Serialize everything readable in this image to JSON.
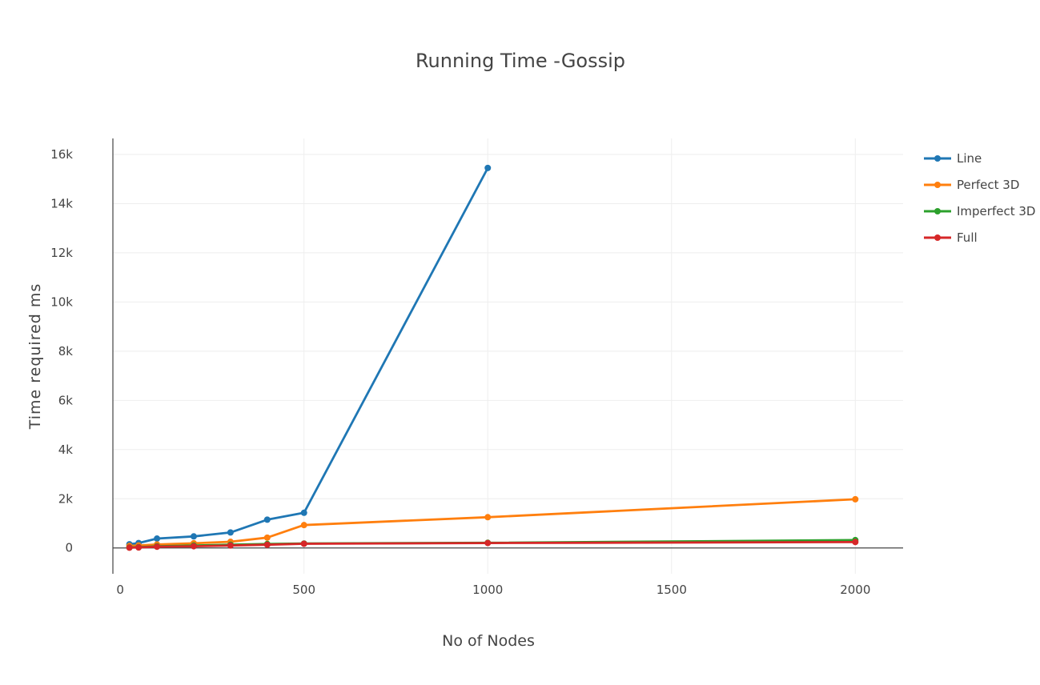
{
  "chart_data": {
    "type": "line",
    "title": "Running Time -Gossip",
    "xlabel": "No of Nodes",
    "ylabel": "Time required ms",
    "xlim": [
      -20,
      2130
    ],
    "ylim": [
      -1050,
      16650
    ],
    "x_ticks": [
      0,
      500,
      1000,
      1500,
      2000
    ],
    "x_tick_labels": [
      "0",
      "500",
      "1000",
      "1500",
      "2000"
    ],
    "y_ticks": [
      0,
      2000,
      4000,
      6000,
      8000,
      10000,
      12000,
      14000,
      16000
    ],
    "y_tick_labels": [
      "0",
      "2k",
      "4k",
      "6k",
      "8k",
      "10k",
      "12k",
      "14k",
      "16k"
    ],
    "grid": true,
    "legend_position": "top-right",
    "series": [
      {
        "name": "Line",
        "color": "#1f77b4",
        "x": [
          25,
          50,
          100,
          200,
          300,
          400,
          500,
          1000
        ],
        "y": [
          150,
          200,
          380,
          470,
          630,
          1150,
          1430,
          15450
        ]
      },
      {
        "name": "Perfect 3D",
        "color": "#ff7f0e",
        "x": [
          25,
          50,
          100,
          200,
          300,
          400,
          500,
          1000,
          2000
        ],
        "y": [
          80,
          100,
          140,
          190,
          250,
          420,
          930,
          1250,
          1980
        ]
      },
      {
        "name": "Imperfect 3D",
        "color": "#2ca02c",
        "x": [
          25,
          50,
          100,
          200,
          300,
          400,
          500,
          1000,
          2000
        ],
        "y": [
          20,
          30,
          70,
          100,
          130,
          160,
          180,
          210,
          320
        ]
      },
      {
        "name": "Full",
        "color": "#d62728",
        "x": [
          25,
          50,
          100,
          200,
          300,
          400,
          500,
          1000,
          2000
        ],
        "y": [
          10,
          20,
          50,
          70,
          100,
          130,
          170,
          200,
          240
        ]
      }
    ]
  }
}
